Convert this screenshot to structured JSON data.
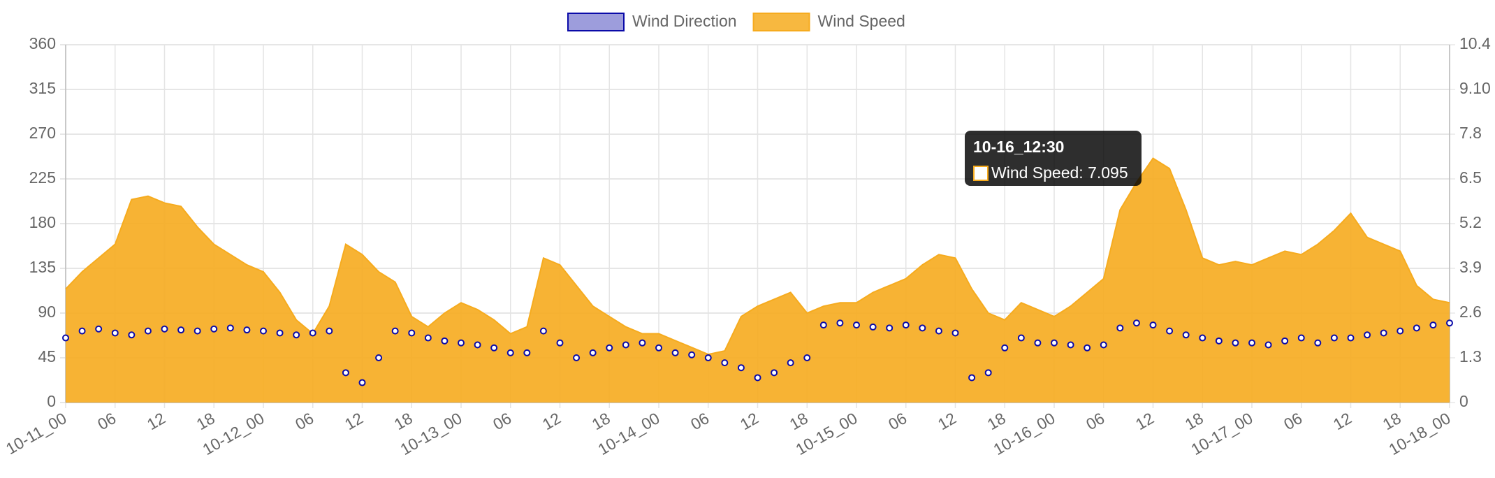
{
  "chart_data": {
    "type": "line",
    "categories": [
      "10-11_00",
      null,
      null,
      "06",
      null,
      null,
      "12",
      null,
      null,
      "18",
      null,
      null,
      "10-12_00",
      null,
      null,
      "06",
      null,
      null,
      "12",
      null,
      null,
      "18",
      null,
      null,
      "10-13_00",
      null,
      null,
      "06",
      null,
      null,
      "12",
      null,
      null,
      "18",
      null,
      null,
      "10-14_00",
      null,
      null,
      "06",
      null,
      null,
      "12",
      null,
      null,
      "18",
      null,
      null,
      "10-15_00",
      null,
      null,
      "06",
      null,
      null,
      "12",
      null,
      null,
      "18",
      null,
      null,
      "10-16_00",
      null,
      null,
      "06",
      null,
      null,
      "12",
      null,
      null,
      "18",
      null,
      null,
      "10-17_00",
      null,
      null,
      "06",
      null,
      null,
      "12",
      null,
      null,
      "18",
      null,
      null,
      "10-18_00"
    ],
    "series": [
      {
        "name": "Wind Direction",
        "color": "#0a0aa8",
        "axis": "y",
        "style": "scatter",
        "values": [
          65,
          72,
          74,
          70,
          68,
          72,
          74,
          73,
          72,
          74,
          75,
          73,
          72,
          70,
          68,
          70,
          72,
          30,
          20,
          45,
          72,
          70,
          65,
          62,
          60,
          58,
          55,
          50,
          50,
          72,
          60,
          45,
          50,
          55,
          58,
          60,
          55,
          50,
          48,
          45,
          40,
          35,
          25,
          30,
          40,
          45,
          78,
          80,
          78,
          76,
          75,
          78,
          75,
          72,
          70,
          25,
          30,
          55,
          65,
          60,
          60,
          58,
          55,
          58,
          75,
          80,
          78,
          72,
          68,
          65,
          62,
          60,
          60,
          58,
          62,
          65,
          60,
          65,
          65,
          68,
          70,
          72,
          75,
          78,
          80
        ]
      },
      {
        "name": "Wind Speed",
        "color": "#f6ab1e",
        "axis": "y2",
        "style": "area",
        "values": [
          3.3,
          3.8,
          4.2,
          4.6,
          5.9,
          6.0,
          5.8,
          5.7,
          5.1,
          4.6,
          4.3,
          4.0,
          3.8,
          3.2,
          2.4,
          2.0,
          2.8,
          4.6,
          4.3,
          3.8,
          3.5,
          2.5,
          2.2,
          2.6,
          2.9,
          2.7,
          2.4,
          2.0,
          2.2,
          4.2,
          4.0,
          3.4,
          2.8,
          2.5,
          2.2,
          2.0,
          2.0,
          1.8,
          1.6,
          1.4,
          1.5,
          2.5,
          2.8,
          3.0,
          3.2,
          2.6,
          2.8,
          2.9,
          2.9,
          3.2,
          3.4,
          3.6,
          4.0,
          4.3,
          4.2,
          3.3,
          2.6,
          2.4,
          2.9,
          2.7,
          2.5,
          2.8,
          3.2,
          3.6,
          5.6,
          6.4,
          7.1,
          6.8,
          5.6,
          4.2,
          4.0,
          4.1,
          4.0,
          4.2,
          4.4,
          4.3,
          4.6,
          5.0,
          5.5,
          4.8,
          4.6,
          4.4,
          3.4,
          3.0,
          2.9
        ]
      }
    ],
    "ylim": [
      0,
      360
    ],
    "yticks": [
      0,
      45,
      90,
      135,
      180,
      225,
      270,
      315,
      360
    ],
    "y2lim": [
      0,
      10.4
    ],
    "y2ticks": [
      0,
      1.3,
      2.6,
      3.9,
      5.2,
      6.5,
      7.8,
      {
        "value": 9.1,
        "label": "9.10"
      },
      10.4
    ],
    "grid": true,
    "legend": "top",
    "tooltip": {
      "title": "10-16_12:30",
      "label": "Wind Speed: 7.095"
    }
  }
}
